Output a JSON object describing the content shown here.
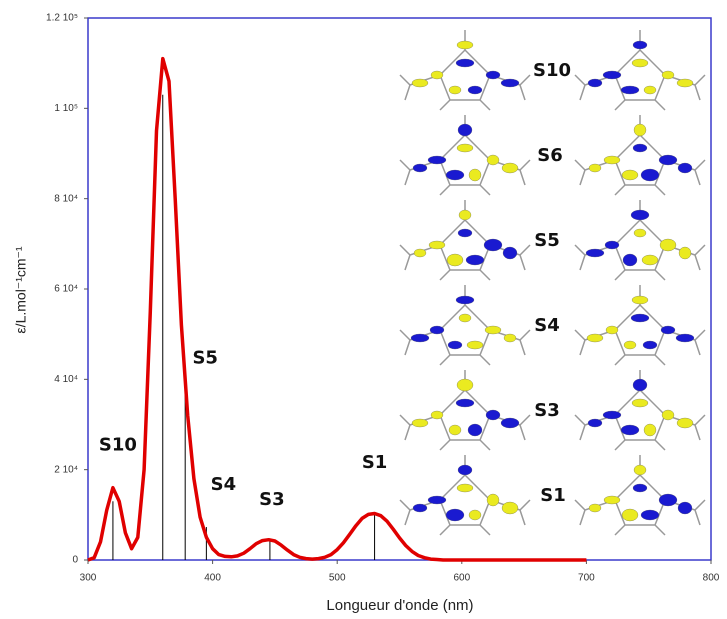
{
  "chart_data": {
    "type": "line",
    "x": [
      300,
      305,
      310,
      315,
      320,
      325,
      330,
      335,
      340,
      345,
      350,
      355,
      360,
      365,
      370,
      375,
      380,
      385,
      390,
      395,
      400,
      405,
      410,
      415,
      420,
      425,
      430,
      435,
      440,
      445,
      450,
      455,
      460,
      465,
      470,
      475,
      480,
      485,
      490,
      495,
      500,
      505,
      510,
      515,
      520,
      525,
      530,
      535,
      540,
      545,
      550,
      555,
      560,
      565,
      570,
      575,
      580,
      585,
      590,
      600,
      700
    ],
    "series": [
      {
        "color": "#e00000",
        "values": [
          0,
          500,
          4000,
          11000,
          16000,
          13000,
          6000,
          2500,
          5000,
          20000,
          55000,
          95000,
          111000,
          106000,
          80000,
          52000,
          32000,
          18000,
          9500,
          5000,
          2500,
          1200,
          800,
          700,
          900,
          1500,
          2500,
          3600,
          4300,
          4500,
          4200,
          3300,
          2200,
          1200,
          600,
          300,
          200,
          300,
          600,
          1200,
          2300,
          3800,
          5700,
          7600,
          9200,
          10100,
          10300,
          9800,
          8600,
          6800,
          4900,
          3200,
          1900,
          1000,
          500,
          200,
          100,
          0,
          0,
          0,
          0
        ]
      }
    ],
    "transitions": {
      "color": "#000000",
      "labels": [
        "S10",
        "S6",
        "S5",
        "S4",
        "S3",
        "S1"
      ],
      "x": [
        320,
        360,
        378,
        395,
        446,
        530
      ],
      "values": [
        13000,
        103000,
        42000,
        7300,
        4400,
        10000
      ]
    },
    "xlim": [
      300,
      800
    ],
    "ylim": [
      0,
      120000
    ],
    "xticks": [
      300,
      400,
      500,
      600,
      700,
      800
    ],
    "yticks": [
      0,
      {
        "value": 20000,
        "label": "2 10⁴"
      },
      {
        "value": 40000,
        "label": "4 10⁴"
      },
      {
        "value": 60000,
        "label": "6 10⁴"
      },
      {
        "value": 80000,
        "label": "8 10⁴"
      },
      {
        "value": 100000,
        "label": "1 10⁵"
      },
      {
        "value": 120000,
        "label": "1.2 10⁵"
      }
    ],
    "xlabel": "Longueur d'onde (nm)",
    "ylabel": "ε/L.mol⁻¹cm⁻¹",
    "frame_color": "#3a3acc"
  },
  "orbital_panel": {
    "labels": [
      "S10",
      "S6",
      "S5",
      "S4",
      "S3",
      "S1"
    ]
  }
}
